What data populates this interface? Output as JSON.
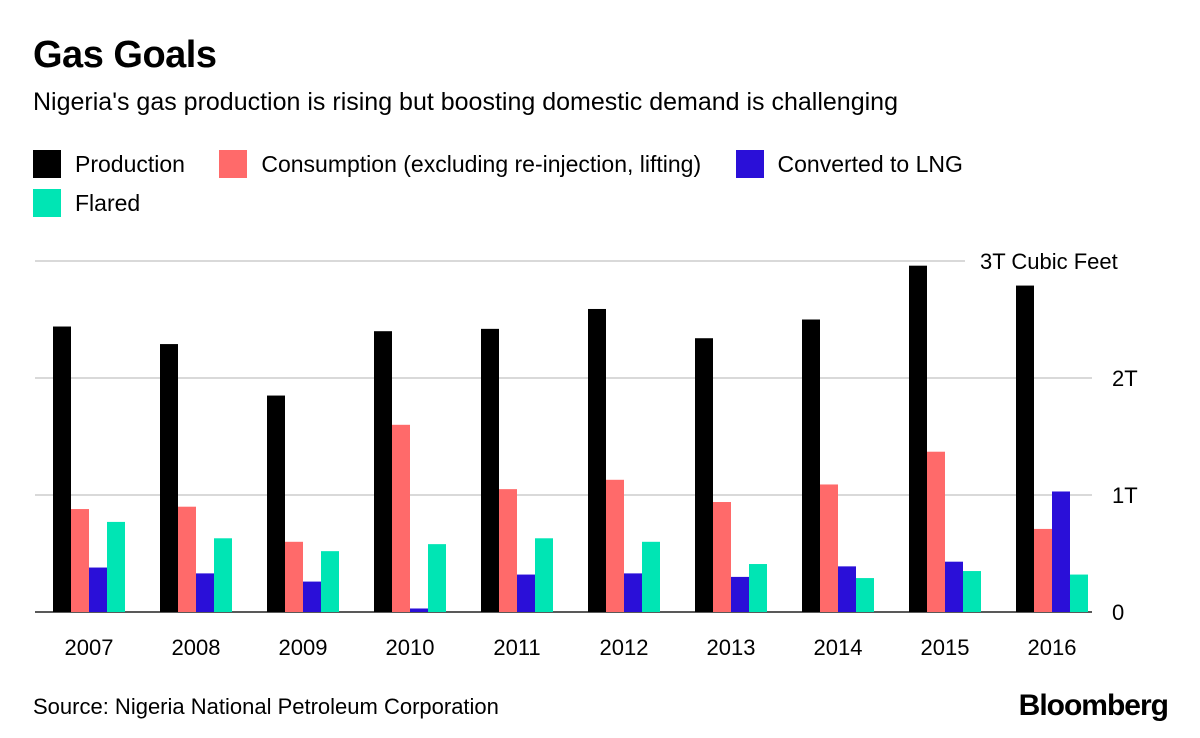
{
  "title": "Gas Goals",
  "subtitle": "Nigeria's gas production is rising but boosting domestic demand is challenging",
  "source": "Source: Nigeria National Petroleum Corporation",
  "logo": "Bloomberg",
  "chart_data": {
    "type": "bar",
    "categories": [
      "2007",
      "2008",
      "2009",
      "2010",
      "2011",
      "2012",
      "2013",
      "2014",
      "2015",
      "2016"
    ],
    "series": [
      {
        "name": "Production",
        "color": "#000000",
        "values": [
          2.44,
          2.29,
          1.85,
          2.4,
          2.42,
          2.59,
          2.34,
          2.5,
          2.96,
          2.79
        ]
      },
      {
        "name": "Consumption (excluding re-injection, lifting)",
        "color": "#ff6a6a",
        "values": [
          0.88,
          0.9,
          0.6,
          1.6,
          1.05,
          1.13,
          0.94,
          1.09,
          1.37,
          0.71
        ]
      },
      {
        "name": "Converted to LNG",
        "color": "#2a0fd8",
        "values": [
          0.38,
          0.33,
          0.26,
          0.03,
          0.32,
          0.33,
          0.3,
          0.39,
          0.43,
          1.03
        ]
      },
      {
        "name": "Flared",
        "color": "#00e5b4",
        "values": [
          0.77,
          0.63,
          0.52,
          0.58,
          0.63,
          0.6,
          0.41,
          0.29,
          0.35,
          0.32
        ]
      }
    ],
    "yticks": [
      {
        "value": 0,
        "label": "0"
      },
      {
        "value": 1,
        "label": "1T"
      },
      {
        "value": 2,
        "label": "2T"
      },
      {
        "value": 3,
        "label": "3T Cubic Feet"
      }
    ],
    "ylim": [
      0,
      3
    ],
    "grid": true,
    "legend": "top",
    "xlabel": "",
    "ylabel": ""
  }
}
